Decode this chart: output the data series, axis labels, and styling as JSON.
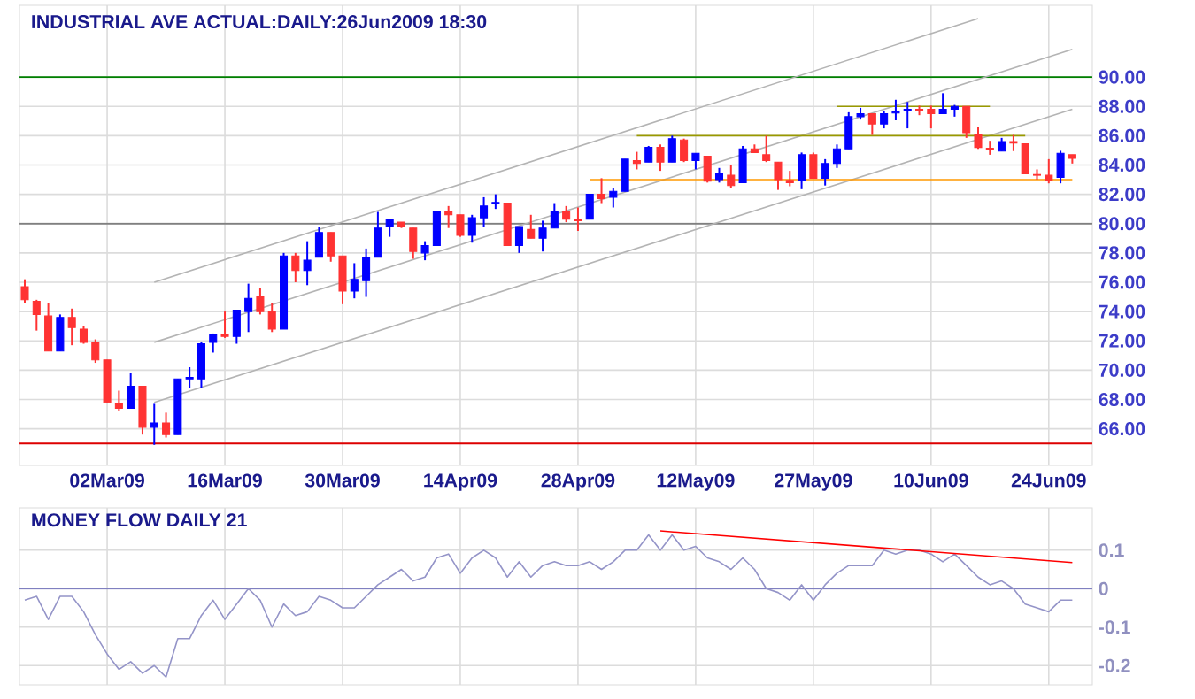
{
  "chart_data": [
    {
      "type": "candlestick",
      "title": "INDUSTRIAL AVE ACTUAL:DAILY:26Jun2009 18:30",
      "categories": [
        null,
        null,
        null,
        null,
        null,
        null,
        null,
        "02Mar09",
        null,
        null,
        null,
        null,
        null,
        null,
        null,
        null,
        null,
        "16Mar09",
        null,
        null,
        null,
        null,
        null,
        null,
        null,
        null,
        null,
        "30Mar09",
        null,
        null,
        null,
        null,
        null,
        null,
        null,
        null,
        null,
        "14Apr09",
        null,
        null,
        null,
        null,
        null,
        null,
        null,
        null,
        null,
        "28Apr09",
        null,
        null,
        null,
        null,
        null,
        null,
        null,
        null,
        null,
        "12May09",
        null,
        null,
        null,
        null,
        null,
        null,
        null,
        null,
        null,
        "27May09",
        null,
        null,
        null,
        null,
        null,
        null,
        null,
        null,
        null,
        "10Jun09",
        null,
        null,
        null,
        null,
        null,
        null,
        null,
        null,
        null,
        "24Jun09",
        null,
        null
      ],
      "ohlc": [
        [
          75.7,
          76.2,
          74.6,
          74.8
        ],
        [
          74.7,
          74.8,
          72.7,
          73.8
        ],
        [
          73.7,
          74.6,
          71.3,
          71.3
        ],
        [
          71.3,
          73.8,
          71.3,
          73.6
        ],
        [
          73.6,
          74.2,
          71.7,
          72.9
        ],
        [
          72.8,
          73.0,
          71.8,
          71.9
        ],
        [
          71.9,
          72.1,
          70.5,
          70.7
        ],
        [
          70.7,
          70.7,
          67.8,
          67.8
        ],
        [
          67.7,
          68.6,
          67.2,
          67.4
        ],
        [
          67.4,
          69.8,
          67.4,
          68.9
        ],
        [
          68.9,
          68.9,
          65.6,
          66.1
        ],
        [
          66.1,
          67.7,
          64.9,
          66.4
        ],
        [
          66.4,
          67.1,
          65.4,
          65.6
        ],
        [
          65.6,
          69.4,
          65.6,
          69.4
        ],
        [
          69.4,
          70.2,
          68.8,
          69.5
        ],
        [
          69.4,
          71.9,
          68.8,
          71.8
        ],
        [
          71.9,
          72.5,
          71.2,
          72.4
        ],
        [
          72.4,
          74.0,
          72.2,
          72.3
        ],
        [
          72.3,
          74.1,
          71.8,
          74.1
        ],
        [
          74.0,
          75.9,
          72.6,
          74.9
        ],
        [
          75.0,
          75.6,
          73.8,
          74.0
        ],
        [
          74.0,
          74.6,
          72.6,
          72.8
        ],
        [
          72.8,
          78.0,
          72.8,
          77.8
        ],
        [
          77.8,
          78.0,
          76.0,
          76.8
        ],
        [
          76.8,
          78.8,
          75.8,
          77.5
        ],
        [
          77.7,
          79.8,
          77.7,
          79.4
        ],
        [
          79.4,
          79.4,
          77.4,
          77.8
        ],
        [
          77.8,
          77.8,
          74.5,
          75.4
        ],
        [
          75.4,
          77.3,
          74.9,
          76.2
        ],
        [
          76.1,
          78.3,
          75.0,
          77.7
        ],
        [
          77.7,
          80.8,
          77.7,
          79.7
        ],
        [
          79.8,
          80.3,
          79.1,
          80.3
        ],
        [
          80.1,
          80.1,
          79.7,
          79.8
        ],
        [
          79.7,
          79.7,
          77.6,
          78.1
        ],
        [
          78.0,
          78.8,
          77.5,
          78.5
        ],
        [
          78.5,
          80.8,
          78.5,
          80.8
        ],
        [
          80.8,
          81.2,
          79.7,
          80.6
        ],
        [
          80.6,
          80.6,
          79.1,
          79.2
        ],
        [
          79.2,
          80.6,
          78.7,
          80.4
        ],
        [
          80.4,
          81.8,
          79.8,
          81.2
        ],
        [
          81.35,
          82.0,
          81.0,
          81.45
        ],
        [
          81.4,
          81.4,
          78.5,
          78.5
        ],
        [
          78.5,
          79.8,
          78.0,
          79.8
        ],
        [
          79.6,
          80.6,
          79.0,
          79.0
        ],
        [
          79.0,
          80.2,
          78.1,
          79.7
        ],
        [
          79.7,
          81.4,
          79.7,
          80.8
        ],
        [
          80.8,
          81.2,
          80.1,
          80.3
        ],
        [
          80.3,
          81.1,
          79.5,
          80.2
        ],
        [
          80.3,
          82.0,
          80.3,
          82.0
        ],
        [
          82.0,
          83.1,
          81.4,
          81.7
        ],
        [
          81.8,
          82.4,
          81.1,
          82.2
        ],
        [
          82.2,
          84.4,
          82.2,
          84.4
        ],
        [
          84.3,
          84.9,
          83.7,
          84.1
        ],
        [
          84.2,
          85.3,
          84.2,
          85.2
        ],
        [
          85.2,
          85.4,
          83.6,
          84.2
        ],
        [
          84.2,
          86.0,
          84.2,
          85.8
        ],
        [
          85.7,
          85.8,
          84.2,
          84.3
        ],
        [
          84.3,
          84.8,
          83.7,
          84.8
        ],
        [
          84.6,
          84.6,
          82.8,
          82.9
        ],
        [
          83.0,
          83.8,
          82.8,
          83.4
        ],
        [
          83.3,
          84.0,
          82.4,
          82.6
        ],
        [
          82.8,
          85.3,
          82.8,
          85.1
        ],
        [
          85.1,
          85.4,
          84.85,
          84.85
        ],
        [
          84.7,
          86.0,
          84.2,
          84.3
        ],
        [
          84.2,
          84.2,
          82.3,
          83.0
        ],
        [
          82.95,
          83.6,
          82.55,
          82.8
        ],
        [
          82.95,
          84.85,
          82.35,
          84.7
        ],
        [
          84.7,
          84.85,
          83.1,
          83.1
        ],
        [
          83.1,
          84.4,
          82.6,
          84.1
        ],
        [
          84.1,
          85.4,
          83.8,
          85.1
        ],
        [
          85.1,
          87.6,
          85.1,
          87.3
        ],
        [
          87.3,
          87.9,
          87.1,
          87.5
        ],
        [
          87.5,
          87.5,
          86.05,
          86.8
        ],
        [
          86.8,
          87.7,
          86.5,
          87.5
        ],
        [
          87.55,
          88.45,
          87.05,
          87.65
        ],
        [
          87.7,
          88.3,
          86.5,
          87.8
        ],
        [
          87.8,
          88.05,
          87.4,
          87.7
        ],
        [
          87.8,
          88.05,
          86.5,
          87.5
        ],
        [
          87.5,
          88.9,
          87.5,
          87.8
        ],
        [
          87.8,
          88.1,
          87.3,
          88.0
        ],
        [
          88.0,
          88.0,
          85.85,
          86.2
        ],
        [
          86.05,
          86.6,
          85.1,
          85.2
        ],
        [
          85.15,
          85.65,
          84.7,
          85.05
        ],
        [
          84.95,
          85.85,
          84.95,
          85.6
        ],
        [
          85.6,
          86.05,
          84.95,
          85.5
        ],
        [
          85.45,
          85.45,
          83.4,
          83.4
        ],
        [
          83.35,
          83.7,
          83.0,
          83.3
        ],
        [
          83.3,
          84.4,
          82.75,
          82.95
        ],
        [
          83.15,
          84.97,
          82.75,
          84.8
        ],
        [
          84.7,
          84.7,
          84.1,
          84.45
        ]
      ],
      "colors": [
        "#ff3333",
        "#ff3333",
        "#ff3333",
        "#0000ff",
        "#ff3333",
        "#ff3333",
        "#ff3333",
        "#ff3333",
        "#ff3333",
        "#0000ff",
        "#ff3333",
        "#0000ff",
        "#ff3333",
        "#0000ff",
        "#0000ff",
        "#0000ff",
        "#0000ff",
        "#ff3333",
        "#0000ff",
        "#0000ff",
        "#ff3333",
        "#ff3333",
        "#0000ff",
        "#ff3333",
        "#0000ff",
        "#0000ff",
        "#ff3333",
        "#ff3333",
        "#0000ff",
        "#0000ff",
        "#0000ff",
        "#0000ff",
        "#ff3333",
        "#ff3333",
        "#0000ff",
        "#0000ff",
        "#ff3333",
        "#ff3333",
        "#0000ff",
        "#0000ff",
        "#0000ff",
        "#ff3333",
        "#0000ff",
        "#ff3333",
        "#0000ff",
        "#0000ff",
        "#ff3333",
        "#ff3333",
        "#0000ff",
        "#ff3333",
        "#0000ff",
        "#0000ff",
        "#ff3333",
        "#0000ff",
        "#ff3333",
        "#0000ff",
        "#ff3333",
        "#0000ff",
        "#ff3333",
        "#0000ff",
        "#ff3333",
        "#0000ff",
        "#ff3333",
        "#ff3333",
        "#ff3333",
        "#ff3333",
        "#0000ff",
        "#ff3333",
        "#0000ff",
        "#0000ff",
        "#0000ff",
        "#0000ff",
        "#ff3333",
        "#0000ff",
        "#0000ff",
        "#0000ff",
        "#ff3333",
        "#ff3333",
        "#0000ff",
        "#0000ff",
        "#ff3333",
        "#ff3333",
        "#ff3333",
        "#0000ff",
        "#ff3333",
        "#ff3333",
        "#ff3333",
        "#ff3333",
        "#0000ff",
        "#ff3333"
      ],
      "series": [
        {
          "type": "line",
          "color": "#b4b4b4",
          "values": [
            null,
            null,
            null,
            null,
            null,
            null,
            null,
            null,
            null,
            null,
            null,
            76.0,
            null,
            null,
            null,
            null,
            null,
            null,
            null,
            null,
            null,
            null,
            null,
            null,
            null,
            null,
            null,
            null,
            null,
            null,
            null,
            null,
            null,
            null,
            null,
            null,
            null,
            null,
            null,
            null,
            null,
            null,
            null,
            null,
            null,
            null,
            null,
            null,
            null,
            null,
            null,
            null,
            null,
            null,
            null,
            null,
            null,
            null,
            null,
            null,
            null,
            null,
            null,
            null,
            null,
            null,
            null,
            null,
            null,
            null,
            null,
            null,
            null,
            null,
            null,
            null,
            null,
            null,
            null,
            null,
            null,
            94.0,
            null,
            null,
            null,
            null,
            null,
            null,
            null,
            null
          ]
        },
        {
          "type": "line",
          "color": "#b4b4b4",
          "values": [
            null,
            null,
            null,
            null,
            null,
            null,
            null,
            null,
            null,
            null,
            null,
            71.9,
            null,
            null,
            null,
            null,
            null,
            null,
            null,
            null,
            null,
            null,
            null,
            null,
            null,
            null,
            null,
            null,
            null,
            null,
            null,
            null,
            null,
            null,
            null,
            null,
            null,
            null,
            null,
            null,
            null,
            null,
            null,
            null,
            null,
            null,
            null,
            null,
            null,
            null,
            null,
            null,
            null,
            null,
            null,
            null,
            null,
            null,
            null,
            null,
            null,
            null,
            null,
            null,
            null,
            null,
            null,
            null,
            null,
            null,
            null,
            null,
            null,
            null,
            null,
            null,
            null,
            null,
            null,
            null,
            null,
            null,
            null,
            null,
            null,
            null,
            null,
            null,
            null,
            91.9
          ]
        },
        {
          "type": "line",
          "color": "#b4b4b4",
          "values": [
            null,
            null,
            null,
            null,
            null,
            null,
            null,
            null,
            null,
            null,
            null,
            67.8,
            null,
            null,
            null,
            null,
            null,
            null,
            null,
            null,
            null,
            null,
            null,
            null,
            null,
            null,
            null,
            null,
            null,
            null,
            null,
            null,
            null,
            null,
            null,
            null,
            null,
            null,
            null,
            null,
            null,
            null,
            null,
            null,
            null,
            null,
            null,
            null,
            null,
            null,
            null,
            null,
            null,
            null,
            null,
            null,
            null,
            null,
            null,
            null,
            null,
            null,
            null,
            null,
            null,
            null,
            null,
            null,
            null,
            null,
            null,
            null,
            null,
            null,
            null,
            null,
            null,
            null,
            null,
            null,
            null,
            null,
            null,
            null,
            null,
            null,
            null,
            null,
            null,
            87.8
          ]
        },
        {
          "type": "line",
          "color": "#999900",
          "values": [
            null,
            null,
            null,
            null,
            null,
            null,
            null,
            null,
            null,
            null,
            null,
            null,
            null,
            null,
            null,
            null,
            null,
            null,
            null,
            null,
            null,
            null,
            null,
            null,
            null,
            null,
            null,
            null,
            null,
            null,
            null,
            null,
            null,
            null,
            null,
            null,
            null,
            null,
            null,
            null,
            null,
            null,
            null,
            null,
            null,
            null,
            null,
            null,
            null,
            null,
            null,
            null,
            null,
            null,
            null,
            null,
            null,
            null,
            null,
            null,
            null,
            null,
            null,
            null,
            null,
            null,
            null,
            null,
            null,
            88.0,
            null,
            null,
            null,
            null,
            null,
            null,
            null,
            null,
            null,
            null,
            null,
            null,
            88.0,
            null,
            null,
            null,
            null,
            null,
            null,
            null
          ]
        },
        {
          "type": "line",
          "color": "#999900",
          "values": [
            null,
            null,
            null,
            null,
            null,
            null,
            null,
            null,
            null,
            null,
            null,
            null,
            null,
            null,
            null,
            null,
            null,
            null,
            null,
            null,
            null,
            null,
            null,
            null,
            null,
            null,
            null,
            null,
            null,
            null,
            null,
            null,
            null,
            null,
            null,
            null,
            null,
            null,
            null,
            null,
            null,
            null,
            null,
            null,
            null,
            null,
            null,
            null,
            null,
            null,
            null,
            null,
            86.0,
            null,
            null,
            null,
            null,
            null,
            null,
            null,
            null,
            null,
            null,
            null,
            null,
            null,
            null,
            null,
            null,
            null,
            null,
            null,
            null,
            null,
            null,
            null,
            null,
            null,
            null,
            null,
            null,
            null,
            null,
            null,
            null,
            86.0,
            null,
            null,
            null,
            null
          ]
        },
        {
          "type": "line",
          "color": "#ff9900",
          "values": [
            null,
            null,
            null,
            null,
            null,
            null,
            null,
            null,
            null,
            null,
            null,
            null,
            null,
            null,
            null,
            null,
            null,
            null,
            null,
            null,
            null,
            null,
            null,
            null,
            null,
            null,
            null,
            null,
            null,
            null,
            null,
            null,
            null,
            null,
            null,
            null,
            null,
            null,
            null,
            null,
            null,
            null,
            null,
            null,
            null,
            null,
            null,
            null,
            83.0,
            null,
            null,
            null,
            null,
            null,
            null,
            null,
            null,
            null,
            null,
            null,
            null,
            null,
            null,
            null,
            null,
            null,
            null,
            null,
            null,
            null,
            null,
            null,
            null,
            null,
            null,
            null,
            null,
            null,
            null,
            null,
            null,
            null,
            null,
            null,
            null,
            null,
            null,
            null,
            null,
            83.0
          ]
        }
      ],
      "ref_lines": [
        {
          "axis": "y",
          "value": 90,
          "color": "#008000"
        },
        {
          "axis": "y",
          "value": 80,
          "color": "#808080"
        },
        {
          "axis": "y",
          "value": 65,
          "color": "#dd0000"
        }
      ],
      "ylim": [
        63.5,
        94.9
      ],
      "yticks": [
        {
          "value": 66,
          "label": "66.00"
        },
        {
          "value": 68,
          "label": "68.00"
        },
        {
          "value": 70,
          "label": "70.00"
        },
        {
          "value": 72,
          "label": "72.00"
        },
        {
          "value": 74,
          "label": "74.00"
        },
        {
          "value": 76,
          "label": "76.00"
        },
        {
          "value": 78,
          "label": "78.00"
        },
        {
          "value": 80,
          "label": "80.00"
        },
        {
          "value": 82,
          "label": "82.00"
        },
        {
          "value": 84,
          "label": "84.00"
        },
        {
          "value": 86,
          "label": "86.00"
        },
        {
          "value": 88,
          "label": "88.00"
        },
        {
          "value": 90,
          "label": "90.00"
        }
      ],
      "grid": true
    },
    {
      "type": "line",
      "title": "MONEY FLOW DAILY 21",
      "categories": [
        null,
        null,
        null,
        null,
        null,
        null,
        null,
        null,
        null,
        null,
        null,
        null,
        null,
        null,
        null,
        null,
        null,
        null,
        null,
        null,
        null,
        null,
        null,
        null,
        null,
        null,
        null,
        null,
        null,
        null,
        null,
        null,
        null,
        null,
        null,
        null,
        null,
        null,
        null,
        null,
        null,
        null,
        null,
        null,
        null,
        null,
        null,
        null,
        null,
        null,
        null,
        null,
        null,
        null,
        null,
        null,
        null,
        null,
        null,
        null,
        null,
        null,
        null,
        null,
        null,
        null,
        null,
        null,
        null,
        null,
        null,
        null,
        null,
        null,
        null,
        null,
        null,
        null,
        null,
        null,
        null,
        null,
        null,
        null,
        null,
        null,
        null,
        null,
        null,
        null
      ],
      "series": [
        {
          "color": "#9494c8",
          "values": [
            -0.03,
            -0.02,
            -0.08,
            -0.02,
            -0.02,
            -0.06,
            -0.12,
            -0.17,
            -0.21,
            -0.19,
            -0.22,
            -0.2,
            -0.23,
            -0.13,
            -0.13,
            -0.07,
            -0.03,
            -0.08,
            -0.04,
            0.0,
            -0.03,
            -0.1,
            -0.04,
            -0.07,
            -0.06,
            -0.02,
            -0.03,
            -0.05,
            -0.05,
            -0.02,
            0.01,
            0.03,
            0.05,
            0.02,
            0.03,
            0.08,
            0.09,
            0.04,
            0.08,
            0.1,
            0.08,
            0.03,
            0.07,
            0.03,
            0.06,
            0.07,
            0.06,
            0.06,
            0.07,
            0.05,
            0.07,
            0.1,
            0.1,
            0.14,
            0.1,
            0.14,
            0.1,
            0.11,
            0.08,
            0.07,
            0.05,
            0.08,
            0.05,
            0.0,
            -0.01,
            -0.03,
            0.01,
            -0.03,
            0.01,
            0.04,
            0.06,
            0.06,
            0.06,
            0.1,
            0.09,
            0.1,
            0.1,
            0.09,
            0.07,
            0.09,
            0.06,
            0.03,
            0.01,
            0.02,
            0.0,
            -0.04,
            -0.05,
            -0.06,
            -0.03,
            -0.03
          ]
        },
        {
          "color": "#ff0000",
          "values": [
            null,
            null,
            null,
            null,
            null,
            null,
            null,
            null,
            null,
            null,
            null,
            null,
            null,
            null,
            null,
            null,
            null,
            null,
            null,
            null,
            null,
            null,
            null,
            null,
            null,
            null,
            null,
            null,
            null,
            null,
            null,
            null,
            null,
            null,
            null,
            null,
            null,
            null,
            null,
            null,
            null,
            null,
            null,
            null,
            null,
            null,
            null,
            null,
            null,
            null,
            null,
            null,
            null,
            null,
            0.15,
            null,
            null,
            null,
            null,
            null,
            null,
            null,
            null,
            null,
            null,
            null,
            null,
            null,
            null,
            null,
            null,
            null,
            null,
            null,
            null,
            null,
            null,
            null,
            null,
            null,
            null,
            null,
            null,
            null,
            null,
            null,
            null,
            null,
            null,
            0.068
          ]
        }
      ],
      "ref_lines": [
        {
          "axis": "y",
          "value": 0,
          "color": "#8080c0"
        }
      ],
      "ylim": [
        -0.25,
        0.21
      ],
      "yticks": [
        -0.2,
        -0.1,
        0,
        0.1
      ],
      "tick_labels": "y",
      "grid": true
    }
  ]
}
